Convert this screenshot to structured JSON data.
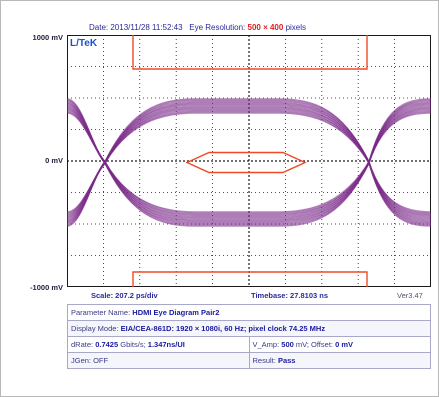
{
  "header": {
    "date_prefix": "Date:",
    "date": "2013/11/28 11:52:43",
    "resolution_label": "Eye Resolution:",
    "resolution_value": "500 × 400",
    "resolution_unit": "pixels"
  },
  "logo": "L/TeK",
  "axis": {
    "y_top": "1000 mV",
    "y_mid": "0 mV",
    "y_bottom": "-1000 mV"
  },
  "footer": {
    "scale": "Scale: 207.2 ps/div",
    "timebase": "Timebase: 27.8103 ns",
    "version": "Ver3.47"
  },
  "params": {
    "param_name_label": "Parameter Name:",
    "param_name_value": "HDMI Eye Diagram Pair2",
    "display_mode_label": "Display Mode:",
    "display_mode_value": "EIA/CEA-861D: 1920 × 1080i, 60 Hz; pixel clock 74.25 MHz",
    "drate_label": "dRate:",
    "drate_value": "0.7425",
    "drate_unit": "Gbits/s;",
    "drate_ui": "1.347ns/UI",
    "vamp_label": "V_Amp:",
    "vamp_value": "500",
    "vamp_unit": "mV; Offset:",
    "offset_value": "0 mV",
    "jgen": "JGen: OFF",
    "result_label": "Result:",
    "result_value": "Pass"
  },
  "colors": {
    "eye_trace": "#7a2a88",
    "mask": "#ef4a28",
    "grid": "#1a1a1a",
    "text_blue": "#2a2a9a"
  }
}
